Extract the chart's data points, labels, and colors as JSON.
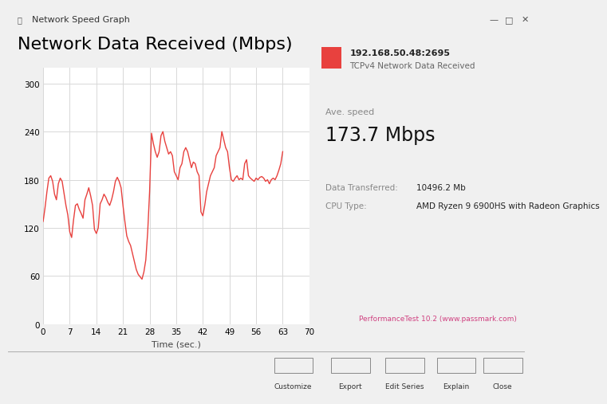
{
  "title": "Network Data Received (Mbps)",
  "window_title": "Network Speed Graph",
  "xlabel": "Time (sec.)",
  "xlim": [
    0,
    70
  ],
  "ylim": [
    0,
    320
  ],
  "yticks": [
    0,
    60,
    120,
    180,
    240,
    300
  ],
  "xticks": [
    0,
    7,
    14,
    21,
    28,
    35,
    42,
    49,
    56,
    63,
    70
  ],
  "line_color": "#e8413e",
  "background_color": "#ffffff",
  "outer_bg": "#f0f0f0",
  "inner_bg": "#ffffff",
  "grid_color": "#d8d8d8",
  "legend_label_top": "192.168.50.48:2695",
  "legend_label_bottom": "TCPv4 Network Data Received",
  "ave_speed_label": "Ave. speed",
  "ave_speed_value": "173.7 Mbps",
  "data_transferred_label": "Data Transferred:",
  "data_transferred_value": "10496.2 Mb",
  "cpu_type_label": "CPU Type:",
  "cpu_type_value": "AMD Ryzen 9 6900HS with Radeon Graphics",
  "footer": "PerformanceTest 10.2 (www.passmark.com)",
  "toolbar_labels": [
    "Customize",
    "Export",
    "Edit Series",
    "Explain",
    "Close"
  ],
  "x": [
    0,
    0.5,
    1,
    1.5,
    2,
    2.5,
    3,
    3.5,
    4,
    4.5,
    5,
    5.5,
    6,
    6.5,
    7,
    7.5,
    8,
    8.5,
    9,
    9.5,
    10,
    10.5,
    11,
    11.5,
    12,
    12.5,
    13,
    13.5,
    14,
    14.5,
    15,
    15.5,
    16,
    16.5,
    17,
    17.5,
    18,
    18.5,
    19,
    19.5,
    20,
    20.5,
    21,
    21.5,
    22,
    22.5,
    23,
    23.5,
    24,
    24.5,
    25,
    25.5,
    26,
    26.5,
    27,
    27.5,
    28,
    28.5,
    29,
    29.5,
    30,
    30.5,
    31,
    31.5,
    32,
    32.5,
    33,
    33.5,
    34,
    34.5,
    35,
    35.5,
    36,
    36.5,
    37,
    37.5,
    38,
    38.5,
    39,
    39.5,
    40,
    40.5,
    41,
    41.5,
    42,
    42.5,
    43,
    43.5,
    44,
    44.5,
    45,
    45.5,
    46,
    46.5,
    47,
    47.5,
    48,
    48.5,
    49,
    49.5,
    50,
    50.5,
    51,
    51.5,
    52,
    52.5,
    53,
    53.5,
    54,
    54.5,
    55,
    55.5,
    56,
    56.5,
    57,
    57.5,
    58,
    58.5,
    59,
    59.5,
    60,
    60.5,
    61,
    61.5,
    62,
    62.5,
    63
  ],
  "y": [
    128,
    145,
    165,
    182,
    185,
    178,
    162,
    155,
    175,
    182,
    178,
    163,
    148,
    136,
    115,
    108,
    130,
    148,
    150,
    143,
    138,
    132,
    155,
    162,
    170,
    160,
    148,
    118,
    113,
    120,
    150,
    155,
    162,
    158,
    152,
    148,
    155,
    165,
    178,
    183,
    178,
    170,
    148,
    128,
    110,
    103,
    98,
    88,
    78,
    68,
    62,
    59,
    56,
    65,
    80,
    115,
    165,
    238,
    225,
    215,
    208,
    215,
    235,
    240,
    228,
    220,
    212,
    215,
    210,
    190,
    185,
    180,
    195,
    200,
    215,
    220,
    215,
    205,
    195,
    202,
    200,
    190,
    185,
    140,
    135,
    148,
    165,
    175,
    185,
    190,
    195,
    210,
    215,
    220,
    240,
    230,
    220,
    215,
    195,
    180,
    178,
    182,
    185,
    180,
    182,
    180,
    200,
    205,
    185,
    182,
    180,
    178,
    182,
    180,
    183,
    184,
    182,
    178,
    180,
    175,
    180,
    182,
    180,
    185,
    192,
    200,
    215
  ]
}
